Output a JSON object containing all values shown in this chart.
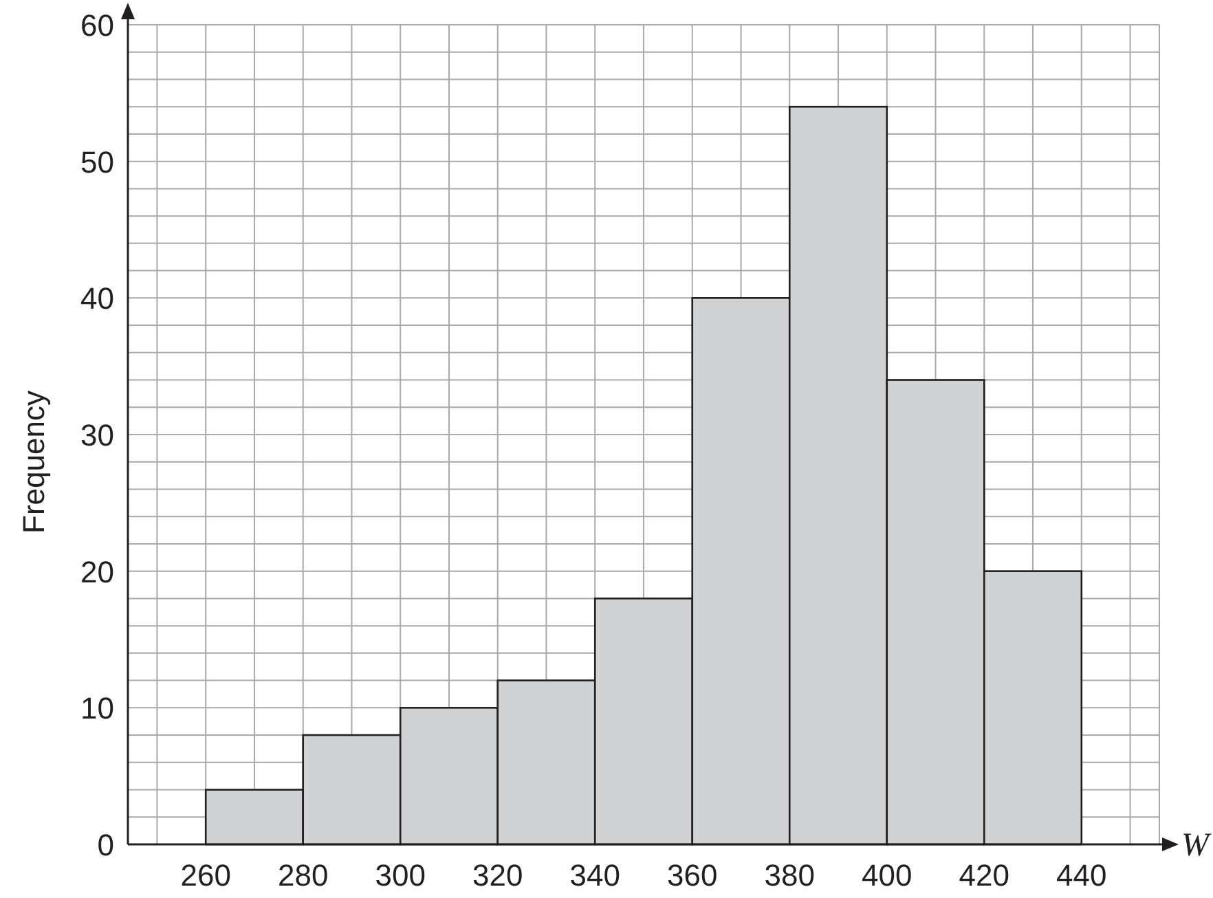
{
  "chart_data": {
    "type": "histogram",
    "xlabel": "W",
    "ylabel": "Frequency",
    "bins": [
      260,
      280,
      300,
      320,
      340,
      360,
      380,
      400,
      420,
      440
    ],
    "values": [
      4,
      8,
      10,
      12,
      18,
      40,
      54,
      34,
      20
    ],
    "color": "#d1d2d4",
    "xlim": [
      244,
      456
    ],
    "xticks": [
      {
        "value": 250,
        "label": null
      },
      260,
      {
        "value": 270,
        "label": null
      },
      280,
      {
        "value": 290,
        "label": null
      },
      300,
      {
        "value": 310,
        "label": null
      },
      320,
      {
        "value": 330,
        "label": null
      },
      340,
      {
        "value": 350,
        "label": null
      },
      360,
      {
        "value": 370,
        "label": null
      },
      380,
      {
        "value": 390,
        "label": null
      },
      400,
      {
        "value": 410,
        "label": null
      },
      420,
      {
        "value": 430,
        "label": null
      },
      440,
      {
        "value": 450,
        "label": null
      }
    ],
    "ylim": [
      0,
      60
    ],
    "yticks": [
      0,
      {
        "value": 2,
        "label": null
      },
      {
        "value": 4,
        "label": null
      },
      {
        "value": 6,
        "label": null
      },
      {
        "value": 8,
        "label": null
      },
      10,
      {
        "value": 12,
        "label": null
      },
      {
        "value": 14,
        "label": null
      },
      {
        "value": 16,
        "label": null
      },
      {
        "value": 18,
        "label": null
      },
      20,
      {
        "value": 22,
        "label": null
      },
      {
        "value": 24,
        "label": null
      },
      {
        "value": 26,
        "label": null
      },
      {
        "value": 28,
        "label": null
      },
      30,
      {
        "value": 32,
        "label": null
      },
      {
        "value": 34,
        "label": null
      },
      {
        "value": 36,
        "label": null
      },
      {
        "value": 38,
        "label": null
      },
      40,
      {
        "value": 42,
        "label": null
      },
      {
        "value": 44,
        "label": null
      },
      {
        "value": 46,
        "label": null
      },
      {
        "value": 48,
        "label": null
      },
      50,
      {
        "value": 52,
        "label": null
      },
      {
        "value": 54,
        "label": null
      },
      {
        "value": 56,
        "label": null
      },
      {
        "value": 58,
        "label": null
      },
      60
    ],
    "grid": true
  }
}
